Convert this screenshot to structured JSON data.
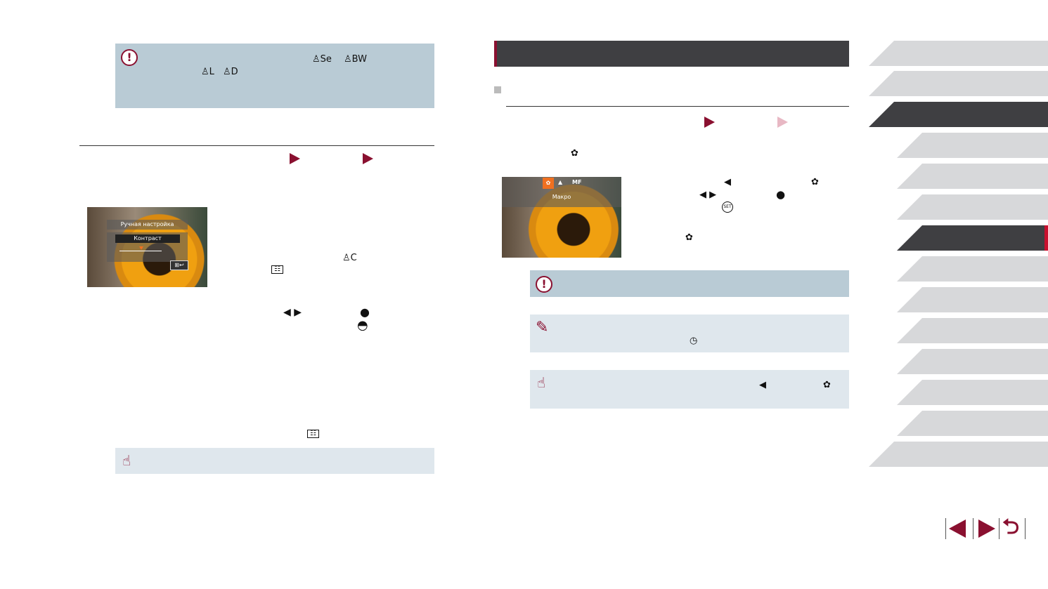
{
  "left_column": {
    "warning_icons": [
      "caution-icon",
      "color-sepia-icon",
      "color-bw-icon",
      "color-light-skin-icon",
      "color-dark-skin-icon"
    ],
    "step_arrows": [
      "step-arrow-icon",
      "step-arrow-icon"
    ],
    "screen_image": {
      "title": "Ручная настройка",
      "item": "Контраст"
    },
    "icons": [
      "custom-color-icon",
      "menu-button-icon",
      "left-right-arrows-icon",
      "control-dial-icon",
      "settings-dial-icon",
      "menu-button-icon"
    ],
    "touch_note_icon": "touch-icon"
  },
  "right_column": {
    "section_bar_color": "#3f3f42",
    "accent": "#8a1030",
    "screen_image": {
      "icons": [
        "macro-icon",
        "normal-icon"
      ],
      "mf_label": "MF",
      "label": "Макро"
    },
    "icons": [
      "macro-icon",
      "left-arrow-icon",
      "macro-icon",
      "left-right-arrows-icon",
      "control-dial-icon",
      "func-set-button-icon",
      "macro-icon",
      "self-timer-2s-icon",
      "left-arrow-icon",
      "macro-icon"
    ],
    "note_icons": [
      "caution-icon",
      "pencil-icon",
      "touch-icon"
    ]
  },
  "sidebar": {
    "active_tab_index": 6,
    "active_top_index": 2,
    "tab_count": 14
  },
  "nav": {
    "prev": "previous-page-icon",
    "next": "next-page-icon",
    "back": "return-icon"
  }
}
